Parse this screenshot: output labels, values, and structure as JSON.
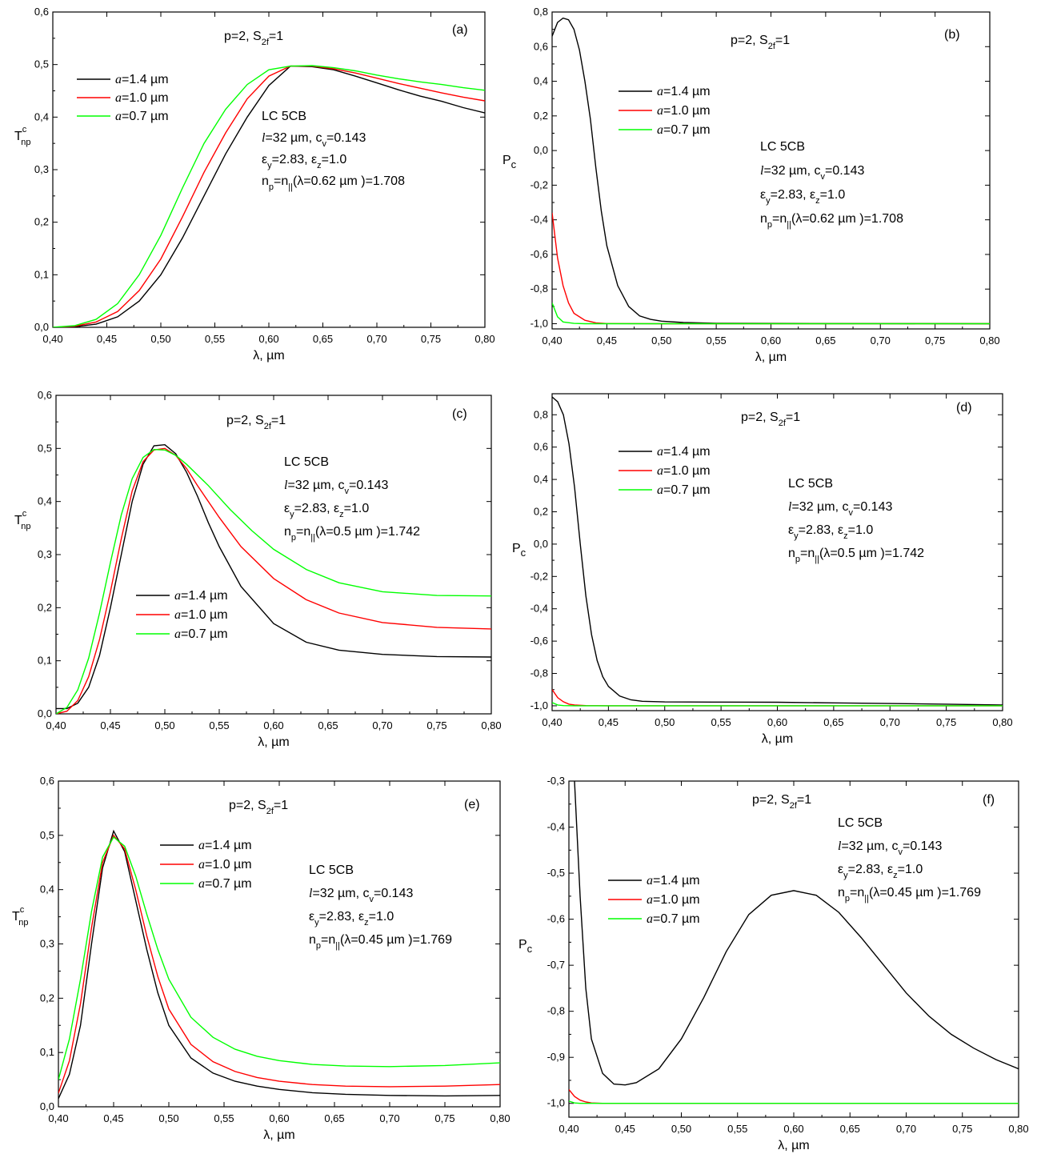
{
  "chart_data": [
    {
      "type": "line",
      "panel": "(a)",
      "header": "p=2, S",
      "header_sub": "2f",
      "header_tail": "=1",
      "ylabel": "T",
      "ylabel_sup": "c",
      "ylabel_sub": "np",
      "xlabel": "λ, µm",
      "xlim": [
        0.4,
        0.8
      ],
      "ylim": [
        0.0,
        0.6
      ],
      "xticks": [
        0.4,
        0.45,
        0.5,
        0.55,
        0.6,
        0.65,
        0.7,
        0.75,
        0.8
      ],
      "yticks": [
        0.0,
        0.1,
        0.2,
        0.3,
        0.4,
        0.5,
        0.6
      ],
      "annotation": [
        "LC 5CB",
        "l=32 µm, c_v=0.143",
        "ε_y=2.83, ε_z=1.0",
        "n_p=n_||(λ=0.62 µm )=1.708"
      ],
      "legend": [
        "a=1.4 µm",
        "a=1.0 µm",
        "a=0.7 µm"
      ],
      "series": [
        {
          "name": "a=1.4 µm",
          "color": "#000000",
          "x": [
            0.4,
            0.42,
            0.44,
            0.46,
            0.48,
            0.5,
            0.52,
            0.54,
            0.56,
            0.58,
            0.6,
            0.62,
            0.64,
            0.66,
            0.68,
            0.7,
            0.72,
            0.74,
            0.76,
            0.78,
            0.8
          ],
          "y": [
            0.0,
            0.001,
            0.006,
            0.02,
            0.05,
            0.1,
            0.17,
            0.25,
            0.33,
            0.4,
            0.46,
            0.497,
            0.496,
            0.49,
            0.478,
            0.465,
            0.452,
            0.44,
            0.43,
            0.418,
            0.408
          ]
        },
        {
          "name": "a=1.0 µm",
          "color": "#ff0000",
          "x": [
            0.4,
            0.42,
            0.44,
            0.46,
            0.48,
            0.5,
            0.52,
            0.54,
            0.56,
            0.58,
            0.6,
            0.62,
            0.64,
            0.66,
            0.68,
            0.7,
            0.72,
            0.74,
            0.76,
            0.78,
            0.8
          ],
          "y": [
            0.0,
            0.002,
            0.01,
            0.03,
            0.07,
            0.13,
            0.21,
            0.295,
            0.37,
            0.435,
            0.478,
            0.497,
            0.497,
            0.492,
            0.484,
            0.474,
            0.464,
            0.455,
            0.446,
            0.438,
            0.431
          ]
        },
        {
          "name": "a=0.7 µm",
          "color": "#00ff00",
          "x": [
            0.4,
            0.42,
            0.44,
            0.46,
            0.48,
            0.5,
            0.52,
            0.54,
            0.56,
            0.58,
            0.6,
            0.62,
            0.64,
            0.66,
            0.68,
            0.7,
            0.72,
            0.74,
            0.76,
            0.78,
            0.8
          ],
          "y": [
            0.0,
            0.003,
            0.015,
            0.045,
            0.1,
            0.175,
            0.265,
            0.35,
            0.415,
            0.462,
            0.49,
            0.497,
            0.498,
            0.494,
            0.488,
            0.48,
            0.473,
            0.467,
            0.462,
            0.456,
            0.451
          ]
        }
      ]
    },
    {
      "type": "line",
      "panel": "(b)",
      "header": "p=2, S",
      "header_sub": "2f",
      "header_tail": "=1",
      "ylabel": "P",
      "ylabel_sup": "",
      "ylabel_sub": "c",
      "xlabel": "λ, µm",
      "xlim": [
        0.4,
        0.8
      ],
      "ylim": [
        -1.03,
        0.8
      ],
      "xticks": [
        0.4,
        0.45,
        0.5,
        0.55,
        0.6,
        0.65,
        0.7,
        0.75,
        0.8
      ],
      "yticks": [
        -1.0,
        -0.8,
        -0.6,
        -0.4,
        -0.2,
        0.0,
        0.2,
        0.4,
        0.6,
        0.8
      ],
      "annotation": [
        "LC 5CB",
        "l=32 µm, c_v=0.143",
        "ε_y=2.83, ε_z=1.0",
        "n_p=n_||(λ=0.62 µm )=1.708"
      ],
      "legend": [
        "a=1.4 µm",
        "a=1.0 µm",
        "a=0.7 µm"
      ],
      "series": [
        {
          "name": "a=1.4 µm",
          "color": "#000000",
          "x": [
            0.4,
            0.405,
            0.41,
            0.415,
            0.42,
            0.425,
            0.43,
            0.435,
            0.44,
            0.445,
            0.45,
            0.46,
            0.47,
            0.48,
            0.49,
            0.5,
            0.52,
            0.55,
            0.6,
            0.7,
            0.8
          ],
          "y": [
            0.66,
            0.74,
            0.765,
            0.755,
            0.7,
            0.58,
            0.4,
            0.18,
            -0.1,
            -0.35,
            -0.55,
            -0.78,
            -0.9,
            -0.955,
            -0.975,
            -0.985,
            -0.993,
            -0.997,
            -0.998,
            -0.999,
            -1.0
          ]
        },
        {
          "name": "a=1.0 µm",
          "color": "#ff0000",
          "x": [
            0.4,
            0.405,
            0.41,
            0.415,
            0.42,
            0.43,
            0.44,
            0.45,
            0.5,
            0.6,
            0.8
          ],
          "y": [
            -0.36,
            -0.62,
            -0.78,
            -0.88,
            -0.94,
            -0.98,
            -0.995,
            -0.999,
            -1.0,
            -1.0,
            -1.0
          ]
        },
        {
          "name": "a=0.7 µm",
          "color": "#00ff00",
          "x": [
            0.4,
            0.405,
            0.41,
            0.42,
            0.43,
            0.5,
            0.8
          ],
          "y": [
            -0.88,
            -0.96,
            -0.99,
            -0.998,
            -1.0,
            -1.0,
            -1.0
          ]
        }
      ]
    },
    {
      "type": "line",
      "panel": "(c)",
      "header": "p=2, S",
      "header_sub": "2f",
      "header_tail": "=1",
      "ylabel": "T",
      "ylabel_sup": "c",
      "ylabel_sub": "np",
      "xlabel": "λ, µm",
      "xlim": [
        0.4,
        0.8
      ],
      "ylim": [
        0.0,
        0.6
      ],
      "xticks": [
        0.4,
        0.45,
        0.5,
        0.55,
        0.6,
        0.65,
        0.7,
        0.75,
        0.8
      ],
      "yticks": [
        0.0,
        0.1,
        0.2,
        0.3,
        0.4,
        0.5,
        0.6
      ],
      "annotation": [
        "LC 5CB",
        "l=32 µm, c_v=0.143",
        "ε_y=2.83, ε_z=1.0",
        "n_p=n_||(λ=0.5 µm )=1.742"
      ],
      "legend": [
        "a=1.4 µm",
        "a=1.0 µm",
        "a=0.7 µm"
      ],
      "series": [
        {
          "name": "a=1.4 µm",
          "color": "#000000",
          "x": [
            0.4,
            0.41,
            0.42,
            0.43,
            0.44,
            0.45,
            0.46,
            0.47,
            0.48,
            0.49,
            0.5,
            0.51,
            0.52,
            0.53,
            0.54,
            0.55,
            0.57,
            0.6,
            0.63,
            0.66,
            0.7,
            0.75,
            0.8
          ],
          "y": [
            0.01,
            0.01,
            0.02,
            0.05,
            0.11,
            0.2,
            0.3,
            0.4,
            0.47,
            0.505,
            0.507,
            0.49,
            0.455,
            0.41,
            0.36,
            0.315,
            0.24,
            0.17,
            0.135,
            0.12,
            0.112,
            0.108,
            0.107
          ]
        },
        {
          "name": "a=1.0 µm",
          "color": "#ff0000",
          "x": [
            0.4,
            0.41,
            0.42,
            0.43,
            0.44,
            0.45,
            0.46,
            0.47,
            0.48,
            0.49,
            0.5,
            0.51,
            0.52,
            0.53,
            0.55,
            0.57,
            0.6,
            0.63,
            0.66,
            0.7,
            0.75,
            0.8
          ],
          "y": [
            0.0,
            0.005,
            0.025,
            0.07,
            0.14,
            0.23,
            0.33,
            0.42,
            0.475,
            0.497,
            0.5,
            0.487,
            0.462,
            0.43,
            0.37,
            0.315,
            0.255,
            0.215,
            0.19,
            0.172,
            0.163,
            0.16
          ]
        },
        {
          "name": "a=0.7 µm",
          "color": "#00ff00",
          "x": [
            0.4,
            0.41,
            0.42,
            0.43,
            0.44,
            0.45,
            0.46,
            0.47,
            0.48,
            0.49,
            0.5,
            0.51,
            0.52,
            0.54,
            0.56,
            0.58,
            0.6,
            0.63,
            0.66,
            0.7,
            0.75,
            0.8
          ],
          "y": [
            0.0,
            0.012,
            0.045,
            0.105,
            0.19,
            0.285,
            0.375,
            0.443,
            0.483,
            0.498,
            0.497,
            0.487,
            0.47,
            0.43,
            0.385,
            0.345,
            0.31,
            0.272,
            0.247,
            0.23,
            0.223,
            0.222
          ]
        }
      ]
    },
    {
      "type": "line",
      "panel": "(d)",
      "header": "p=2, S",
      "header_sub": "2f",
      "header_tail": "=1",
      "ylabel": "P",
      "ylabel_sup": "",
      "ylabel_sub": "c",
      "xlabel": "λ, µm",
      "xlim": [
        0.4,
        0.8
      ],
      "ylim": [
        -1.03,
        0.93
      ],
      "xticks": [
        0.4,
        0.45,
        0.5,
        0.55,
        0.6,
        0.65,
        0.7,
        0.75,
        0.8
      ],
      "yticks": [
        -1.0,
        -0.8,
        -0.6,
        -0.4,
        -0.2,
        0.0,
        0.2,
        0.4,
        0.6,
        0.8
      ],
      "annotation": [
        "LC 5CB",
        "l=32 µm, c_v=0.143",
        "ε_y=2.83, ε_z=1.0",
        "n_p=n_||(λ=0.5 µm )=1.742"
      ],
      "legend": [
        "a=1.4 µm",
        "a=1.0 µm",
        "a=0.7 µm"
      ],
      "series": [
        {
          "name": "a=1.4 µm",
          "color": "#000000",
          "x": [
            0.4,
            0.405,
            0.41,
            0.415,
            0.42,
            0.425,
            0.43,
            0.435,
            0.44,
            0.445,
            0.45,
            0.46,
            0.47,
            0.48,
            0.5,
            0.55,
            0.6,
            0.65,
            0.7,
            0.75,
            0.8
          ],
          "y": [
            0.91,
            0.88,
            0.8,
            0.62,
            0.35,
            0.0,
            -0.32,
            -0.56,
            -0.72,
            -0.82,
            -0.88,
            -0.94,
            -0.963,
            -0.972,
            -0.976,
            -0.977,
            -0.978,
            -0.982,
            -0.986,
            -0.99,
            -0.995
          ]
        },
        {
          "name": "a=1.0 µm",
          "color": "#ff0000",
          "x": [
            0.4,
            0.405,
            0.41,
            0.415,
            0.42,
            0.43,
            0.45,
            0.5,
            0.8
          ],
          "y": [
            -0.9,
            -0.95,
            -0.975,
            -0.99,
            -0.995,
            -0.999,
            -1.0,
            -1.0,
            -1.0
          ]
        },
        {
          "name": "a=0.7 µm",
          "color": "#00ff00",
          "x": [
            0.4,
            0.405,
            0.41,
            0.42,
            0.5,
            0.8
          ],
          "y": [
            -0.98,
            -0.995,
            -0.999,
            -1.0,
            -1.0,
            -1.0
          ]
        }
      ]
    },
    {
      "type": "line",
      "panel": "(e)",
      "header": "p=2, S",
      "header_sub": "2f",
      "header_tail": "=1",
      "ylabel": "T",
      "ylabel_sup": "c",
      "ylabel_sub": "np",
      "xlabel": "λ, µm",
      "xlim": [
        0.4,
        0.8
      ],
      "ylim": [
        0.0,
        0.6
      ],
      "xticks": [
        0.4,
        0.45,
        0.5,
        0.55,
        0.6,
        0.65,
        0.7,
        0.75,
        0.8
      ],
      "yticks": [
        0.0,
        0.1,
        0.2,
        0.3,
        0.4,
        0.5,
        0.6
      ],
      "annotation": [
        "LC 5CB",
        "l=32 µm, c_v=0.143",
        "ε_y=2.83, ε_z=1.0",
        "n_p=n_||(λ=0.45 µm )=1.769"
      ],
      "legend": [
        "a=1.4 µm",
        "a=1.0 µm",
        "a=0.7 µm"
      ],
      "series": [
        {
          "name": "a=1.4 µm",
          "color": "#000000",
          "x": [
            0.4,
            0.41,
            0.42,
            0.43,
            0.44,
            0.45,
            0.46,
            0.47,
            0.48,
            0.49,
            0.5,
            0.52,
            0.54,
            0.56,
            0.58,
            0.6,
            0.63,
            0.66,
            0.7,
            0.75,
            0.8
          ],
          "y": [
            0.015,
            0.06,
            0.15,
            0.3,
            0.44,
            0.508,
            0.47,
            0.38,
            0.29,
            0.21,
            0.15,
            0.09,
            0.062,
            0.047,
            0.038,
            0.032,
            0.026,
            0.023,
            0.021,
            0.02,
            0.021
          ]
        },
        {
          "name": "a=1.0 µm",
          "color": "#ff0000",
          "x": [
            0.4,
            0.41,
            0.42,
            0.43,
            0.44,
            0.45,
            0.46,
            0.47,
            0.48,
            0.49,
            0.5,
            0.52,
            0.54,
            0.56,
            0.58,
            0.6,
            0.63,
            0.66,
            0.7,
            0.75,
            0.8
          ],
          "y": [
            0.025,
            0.085,
            0.19,
            0.33,
            0.45,
            0.5,
            0.475,
            0.4,
            0.315,
            0.24,
            0.18,
            0.115,
            0.083,
            0.065,
            0.054,
            0.047,
            0.041,
            0.038,
            0.037,
            0.038,
            0.041
          ]
        },
        {
          "name": "a=0.7 µm",
          "color": "#00ff00",
          "x": [
            0.4,
            0.41,
            0.42,
            0.43,
            0.44,
            0.45,
            0.46,
            0.47,
            0.48,
            0.49,
            0.5,
            0.52,
            0.54,
            0.56,
            0.58,
            0.6,
            0.63,
            0.66,
            0.7,
            0.75,
            0.8
          ],
          "y": [
            0.05,
            0.125,
            0.235,
            0.36,
            0.46,
            0.497,
            0.48,
            0.425,
            0.355,
            0.29,
            0.235,
            0.165,
            0.128,
            0.106,
            0.093,
            0.085,
            0.078,
            0.075,
            0.074,
            0.076,
            0.081
          ]
        }
      ]
    },
    {
      "type": "line",
      "panel": "(f)",
      "header": "p=2, S",
      "header_sub": "2f",
      "header_tail": "=1",
      "ylabel": "P",
      "ylabel_sup": "",
      "ylabel_sub": "c",
      "xlabel": "λ, µm",
      "xlim": [
        0.4,
        0.8
      ],
      "ylim": [
        -1.03,
        -0.3
      ],
      "xticks": [
        0.4,
        0.45,
        0.5,
        0.55,
        0.6,
        0.65,
        0.7,
        0.75,
        0.8
      ],
      "yticks": [
        -1.0,
        -0.9,
        -0.8,
        -0.7,
        -0.6,
        -0.5,
        -0.4,
        -0.3
      ],
      "annotation": [
        "LC 5CB",
        "l=32 µm, c_v=0.143",
        "ε_y=2.83, ε_z=1.0",
        "n_p=n_||(λ=0.45 µm )=1.769"
      ],
      "legend": [
        "a=1.4 µm",
        "a=1.0 µm",
        "a=0.7 µm"
      ],
      "series": [
        {
          "name": "a=1.4 µm",
          "color": "#000000",
          "x": [
            0.405,
            0.41,
            0.415,
            0.42,
            0.43,
            0.44,
            0.45,
            0.46,
            0.48,
            0.5,
            0.52,
            0.54,
            0.56,
            0.58,
            0.6,
            0.62,
            0.64,
            0.66,
            0.68,
            0.7,
            0.72,
            0.74,
            0.76,
            0.78,
            0.8
          ],
          "y": [
            -0.3,
            -0.55,
            -0.75,
            -0.86,
            -0.935,
            -0.958,
            -0.96,
            -0.955,
            -0.925,
            -0.86,
            -0.77,
            -0.67,
            -0.59,
            -0.548,
            -0.538,
            -0.548,
            -0.585,
            -0.64,
            -0.7,
            -0.76,
            -0.81,
            -0.85,
            -0.88,
            -0.905,
            -0.925
          ]
        },
        {
          "name": "a=1.0 µm",
          "color": "#ff0000",
          "x": [
            0.4,
            0.405,
            0.41,
            0.415,
            0.42,
            0.43,
            0.45,
            0.5,
            0.8
          ],
          "y": [
            -0.97,
            -0.985,
            -0.993,
            -0.997,
            -0.999,
            -1.0,
            -1.0,
            -1.0,
            -1.0
          ]
        },
        {
          "name": "a=0.7 µm",
          "color": "#00ff00",
          "x": [
            0.4,
            0.405,
            0.41,
            0.42,
            0.5,
            0.8
          ],
          "y": [
            -0.995,
            -0.999,
            -1.0,
            -1.0,
            -1.0,
            -1.0
          ]
        }
      ]
    }
  ]
}
